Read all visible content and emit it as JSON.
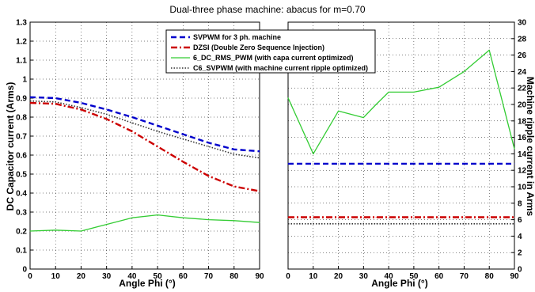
{
  "chart_data": [
    {
      "type": "line",
      "title": "Dual-three phase  machine: abacus for m=0.70",
      "xlabel": "Angle Phi (°)",
      "ylabel": "DC Capacitor current (Arms)",
      "xlim": [
        0,
        90
      ],
      "ylim": [
        0,
        1.3
      ],
      "xticks": [
        "0",
        "10",
        "20",
        "30",
        "40",
        "50",
        "60",
        "70",
        "80",
        "90"
      ],
      "yticks": [
        "0",
        "0.1",
        "0.2",
        "0.3",
        "0.4",
        "0.5",
        "0.6",
        "0.7",
        "0.8",
        "0.9",
        "1",
        "1.1",
        "1.2",
        "1.3"
      ],
      "grid": true,
      "legend_position": "top-right",
      "x": [
        0,
        10,
        20,
        30,
        40,
        50,
        60,
        70,
        80,
        90
      ],
      "series": [
        {
          "name": "SVPWM for 3 ph. machine",
          "color": "#0000cc",
          "style": "dashed",
          "values": [
            0.905,
            0.9,
            0.875,
            0.84,
            0.8,
            0.755,
            0.71,
            0.665,
            0.63,
            0.62
          ]
        },
        {
          "name": "DZSI (Double Zero Sequence   Injection)",
          "color": "#cc0000",
          "style": "dashdot",
          "values": [
            0.875,
            0.87,
            0.84,
            0.79,
            0.725,
            0.645,
            0.565,
            0.49,
            0.435,
            0.41
          ]
        },
        {
          "name": "6_DC_RMS_PWM (with capa current optimized)",
          "color": "#33cc33",
          "style": "solid",
          "values": [
            0.2,
            0.205,
            0.2,
            0.235,
            0.27,
            0.285,
            0.27,
            0.26,
            0.255,
            0.245
          ]
        },
        {
          "name": "C6_SVPWM (with machine current ripple optimized)",
          "color": "#333333",
          "style": "dotted",
          "values": [
            0.885,
            0.88,
            0.85,
            0.815,
            0.77,
            0.725,
            0.685,
            0.645,
            0.605,
            0.585
          ]
        }
      ]
    },
    {
      "type": "line",
      "title": "",
      "xlabel": "Angle Phi (°)",
      "ylabel": "Machine ripple current in Arms",
      "xlim": [
        0,
        90
      ],
      "ylim": [
        0,
        30
      ],
      "xticks": [
        "0",
        "10",
        "20",
        "30",
        "40",
        "50",
        "60",
        "70",
        "80",
        "90"
      ],
      "yticks": [
        "0",
        "2",
        "4",
        "6",
        "8",
        "10",
        "12",
        "14",
        "16",
        "18",
        "20",
        "22",
        "24",
        "26",
        "28",
        "30"
      ],
      "grid": true,
      "x": [
        0,
        10,
        20,
        30,
        35,
        40,
        50,
        60,
        70,
        80,
        90
      ],
      "series": [
        {
          "name": "SVPWM for 3 ph. machine",
          "color": "#0000cc",
          "style": "dashed",
          "values": [
            12.8,
            12.8,
            12.8,
            12.8,
            12.8,
            12.8,
            12.8,
            12.8,
            12.8,
            12.8,
            12.8
          ]
        },
        {
          "name": "DZSI (Double Zero Sequence   Injection)",
          "color": "#cc0000",
          "style": "dashdot",
          "values": [
            6.3,
            6.3,
            6.3,
            6.3,
            6.3,
            6.3,
            6.3,
            6.3,
            6.3,
            6.3,
            6.3
          ]
        },
        {
          "name": "6_DC_RMS_PWM (with capa current optimized)",
          "color": "#33cc33",
          "style": "solid",
          "values": [
            20.8,
            14.0,
            19.2,
            18.4,
            20.0,
            21.5,
            21.5,
            22.1,
            24.0,
            26.6,
            14.6
          ]
        },
        {
          "name": "C6_SVPWM (with machine current ripple optimized)",
          "color": "#333333",
          "style": "dotted",
          "values": [
            5.5,
            5.5,
            5.5,
            5.5,
            5.5,
            5.5,
            5.5,
            5.5,
            5.5,
            5.5,
            5.5
          ]
        }
      ]
    }
  ]
}
